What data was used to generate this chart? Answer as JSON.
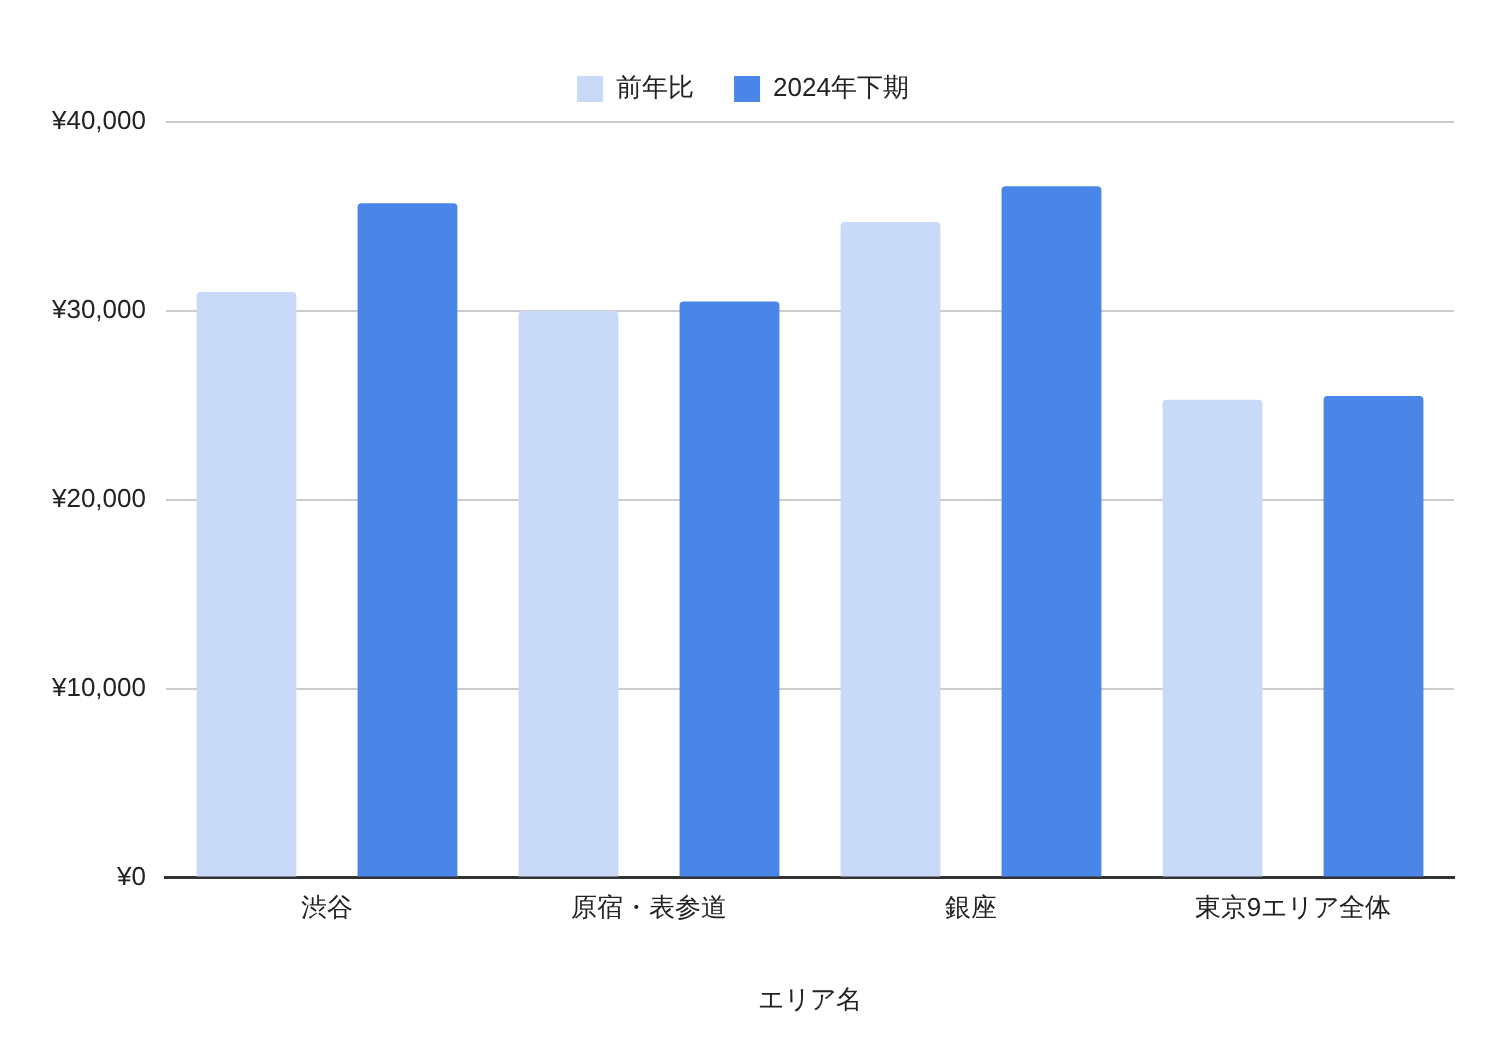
{
  "chart_data": {
    "type": "bar",
    "xlabel": "エリア名",
    "categories": [
      "渋谷",
      "原宿・表参道",
      "銀座",
      "東京9エリア全体"
    ],
    "series": [
      {
        "name": "前年比",
        "color": "#c9daf8",
        "values": [
          31000,
          30000,
          34700,
          25300
        ]
      },
      {
        "name": "2024年下期",
        "color": "#4a86e8",
        "values": [
          35700,
          30500,
          36600,
          25500
        ]
      }
    ],
    "ylim": [
      0,
      40000
    ],
    "yticks": [
      {
        "value": 0,
        "label": "¥0"
      },
      {
        "value": 10000,
        "label": "¥10,000"
      },
      {
        "value": 20000,
        "label": "¥20,000"
      },
      {
        "value": 30000,
        "label": "¥30,000"
      },
      {
        "value": 40000,
        "label": "¥40,000"
      }
    ],
    "grid": "y",
    "legend": "top"
  }
}
